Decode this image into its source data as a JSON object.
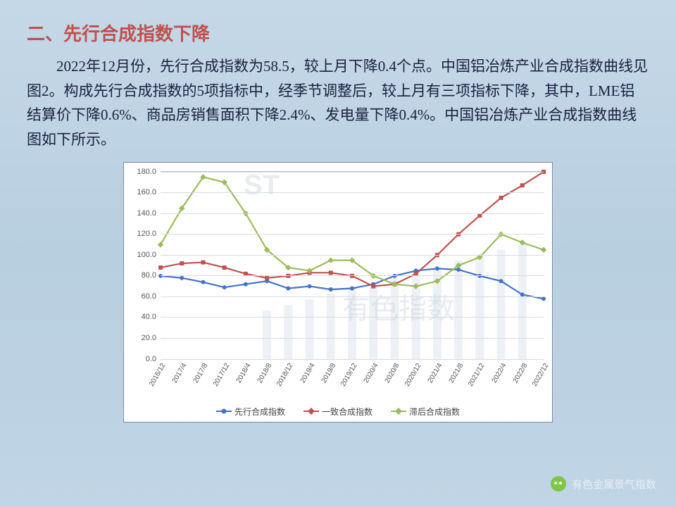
{
  "heading": "二、先行合成指数下降",
  "paragraph": "2022年12月份，先行合成指数为58.5，较上月下降0.4个点。中国铝冶炼产业合成指数曲线见图2。构成先行合成指数的5项指标中，经季节调整后，较上月有三项指标下降，其中，LME铝结算价下降0.6%、商品房销售面积下降2.4%、发电量下降0.4%。中国铝冶炼产业合成指数曲线图如下所示。",
  "footer": "有色金属景气指数",
  "watermark1": "ST",
  "watermark2": "有色指数",
  "chart": {
    "type": "line",
    "background": "#ffffff",
    "grid_color": "#d5dce5",
    "axis_color": "#888888",
    "label_fontsize": 11,
    "ylim": [
      0,
      180
    ],
    "ytick_step": 20,
    "categories": [
      "2016/12",
      "2017/4",
      "2017/8",
      "2017/12",
      "2018/4",
      "2018/8",
      "2018/12",
      "2019/4",
      "2019/8",
      "2019/12",
      "2020/4",
      "2020/8",
      "2020/12",
      "2021/4",
      "2021/8",
      "2021/12",
      "2022/4",
      "2022/8",
      "2022/12"
    ],
    "series": [
      {
        "name": "先行合成指数",
        "color": "#4472c4",
        "marker": "circle",
        "values": [
          80,
          78,
          74,
          69,
          72,
          75,
          68,
          70,
          67,
          68,
          72,
          80,
          85,
          87,
          86,
          80,
          75,
          62,
          58
        ]
      },
      {
        "name": "一致合成指数",
        "color": "#c0504d",
        "marker": "square",
        "values": [
          88,
          92,
          93,
          88,
          82,
          78,
          80,
          83,
          83,
          80,
          70,
          72,
          82,
          100,
          120,
          138,
          155,
          167,
          180
        ]
      },
      {
        "name": "滞后合成指数",
        "color": "#9bbb59",
        "marker": "diamond",
        "values": [
          110,
          145,
          175,
          170,
          140,
          105,
          88,
          85,
          95,
          95,
          80,
          72,
          70,
          75,
          90,
          98,
          120,
          112,
          105
        ]
      }
    ],
    "legend_position": "bottom",
    "line_width": 2.2,
    "marker_size": 6
  }
}
